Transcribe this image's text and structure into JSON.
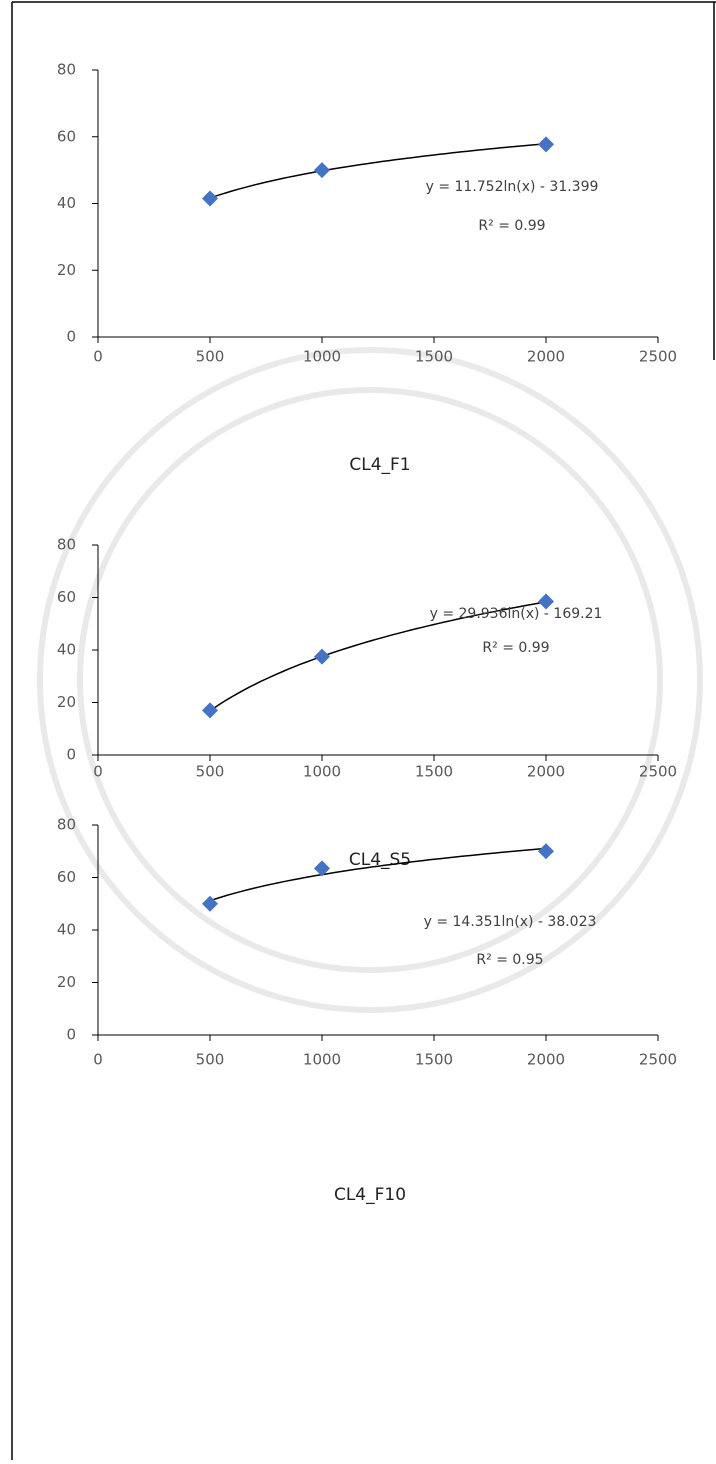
{
  "chart_data": [
    {
      "type": "scatter",
      "title": "CL4_F1",
      "x": [
        500,
        1000,
        2000
      ],
      "series": [
        {
          "color": "#4472c4",
          "values": [
            41.5,
            50,
            57.7
          ]
        }
      ],
      "xlim": [
        0,
        2500
      ],
      "xticks": [
        0,
        500,
        1000,
        1500,
        2000,
        2500
      ],
      "ylim": [
        0,
        80
      ],
      "yticks": [
        0,
        20,
        40,
        60,
        80
      ],
      "trendline": {
        "equation": "y = 11.752ln(x) - 31.399",
        "r2": "R² = 0.99",
        "coef": 11.752,
        "intercept": -31.399
      }
    },
    {
      "type": "scatter",
      "title": "CL4_S5",
      "x": [
        500,
        1000,
        2000
      ],
      "series": [
        {
          "color": "#4472c4",
          "values": [
            17,
            37.5,
            58.5
          ]
        }
      ],
      "xlim": [
        0,
        2500
      ],
      "xticks": [
        0,
        500,
        1000,
        1500,
        2000,
        2500
      ],
      "ylim": [
        0,
        80
      ],
      "yticks": [
        0,
        20,
        40,
        60,
        80
      ],
      "trendline": {
        "equation": "y = 29.936ln(x) - 169.21",
        "r2": "R² = 0.99",
        "coef": 29.936,
        "intercept": -169.21
      }
    },
    {
      "type": "scatter",
      "title": "CL4_F10",
      "x": [
        500,
        1000,
        2000
      ],
      "series": [
        {
          "color": "#4472c4",
          "values": [
            50,
            63.5,
            70
          ]
        }
      ],
      "xlim": [
        0,
        2500
      ],
      "xticks": [
        0,
        500,
        1000,
        1500,
        2000,
        2500
      ],
      "ylim": [
        0,
        80
      ],
      "yticks": [
        0,
        20,
        40,
        60,
        80
      ],
      "trendline": {
        "equation": "y = 14.351ln(x) - 38.023",
        "r2": "R² = 0.95",
        "coef": 14.351,
        "intercept": -38.023
      }
    }
  ]
}
